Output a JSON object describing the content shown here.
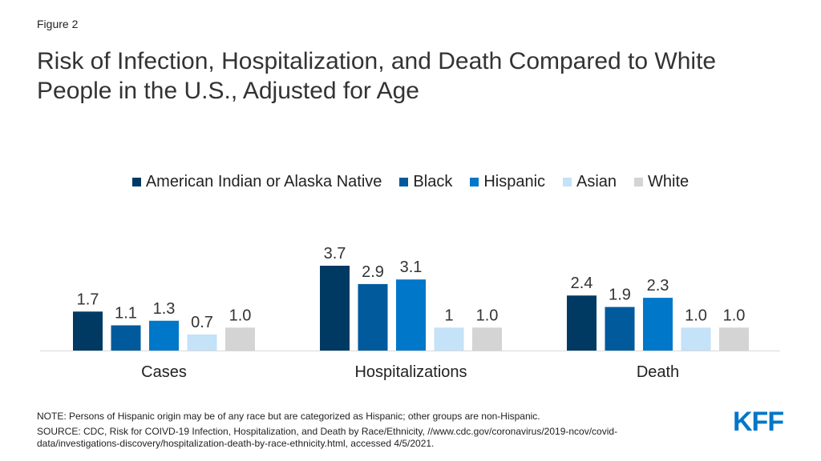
{
  "figure_label": "Figure 2",
  "title": "Risk of Infection, Hospitalization, and Death Compared to White People in the U.S., Adjusted for Age",
  "note": "NOTE: Persons of Hispanic origin may be of any race but are categorized as Hispanic; other groups are non-Hispanic.",
  "source": "SOURCE: CDC, Risk for COIVD-19 Infection, Hospitalization, and Death by Race/Ethnicity, //www.cdc.gov/coronavirus/2019-ncov/covid-data/investigations-discovery/hospitalization-death-by-race-ethnicity.html, accessed 4/5/2021.",
  "logo_text": "KFF",
  "chart_data": {
    "type": "bar",
    "categories": [
      "Cases",
      "Hospitalizations",
      "Death"
    ],
    "ylim": [
      0,
      3.7
    ],
    "legend_position": "top-center",
    "grid": false,
    "series": [
      {
        "name": "American Indian or Alaska Native",
        "color": "#003a63",
        "values": [
          1.7,
          3.7,
          2.4
        ],
        "labels": [
          "1.7",
          "3.7",
          "2.4"
        ]
      },
      {
        "name": "Black",
        "color": "#005a9c",
        "values": [
          1.1,
          2.9,
          1.9
        ],
        "labels": [
          "1.1",
          "2.9",
          "1.9"
        ]
      },
      {
        "name": "Hispanic",
        "color": "#0077c8",
        "values": [
          1.3,
          3.1,
          2.3
        ],
        "labels": [
          "1.3",
          "3.1",
          "2.3"
        ]
      },
      {
        "name": "Asian",
        "color": "#c4e2f8",
        "values": [
          0.7,
          1.0,
          1.0
        ],
        "labels": [
          "0.7",
          "1",
          "1.0"
        ]
      },
      {
        "name": "White",
        "color": "#d4d4d4",
        "values": [
          1.0,
          1.0,
          1.0
        ],
        "labels": [
          "1.0",
          "1.0",
          "1.0"
        ]
      }
    ]
  }
}
